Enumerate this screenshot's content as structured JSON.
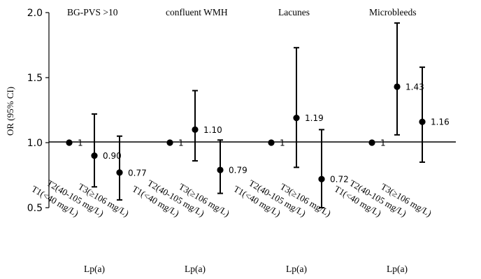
{
  "chart_data": {
    "type": "scatter",
    "ylabel": "OR (95% CI)",
    "ylim": [
      0.5,
      2.0
    ],
    "yticks": [
      "0.5",
      "1.0",
      "1.5",
      "2.0"
    ],
    "reference_line": 1.0,
    "panels": [
      {
        "title": "BG-PVS >10",
        "xlabel": "Lp(a)",
        "categories": [
          "T1(<40 mg/L)",
          "T2(40-105 mg/L)",
          "T3(≥106 mg/L)"
        ],
        "points": [
          {
            "or": 1.0,
            "lo": null,
            "hi": null,
            "label": "1"
          },
          {
            "or": 0.9,
            "lo": 0.66,
            "hi": 1.22,
            "label": "0.90"
          },
          {
            "or": 0.77,
            "lo": 0.56,
            "hi": 1.05,
            "label": "0.77"
          }
        ]
      },
      {
        "title": "confluent WMH",
        "xlabel": "Lp(a)",
        "categories": [
          "T1(<40 mg/L)",
          "T2(40-105 mg/L)",
          "T3(≥106 mg/L)"
        ],
        "points": [
          {
            "or": 1.0,
            "lo": null,
            "hi": null,
            "label": "1"
          },
          {
            "or": 1.1,
            "lo": 0.86,
            "hi": 1.4,
            "label": "1.10"
          },
          {
            "or": 0.79,
            "lo": 0.61,
            "hi": 1.02,
            "label": "0.79"
          }
        ]
      },
      {
        "title": "Lacunes",
        "xlabel": "Lp(a)",
        "categories": [
          "T1(<40 mg/L)",
          "T2(40-105 mg/L)",
          "T3(≥106 mg/L)"
        ],
        "points": [
          {
            "or": 1.0,
            "lo": null,
            "hi": null,
            "label": "1"
          },
          {
            "or": 1.19,
            "lo": 0.81,
            "hi": 1.73,
            "label": "1.19"
          },
          {
            "or": 0.72,
            "lo": 0.5,
            "hi": 1.1,
            "label": "0.72"
          }
        ]
      },
      {
        "title": "Microbleeds",
        "xlabel": "Lp(a)",
        "categories": [
          "T1(<40 mg/L)",
          "T2(40-105 mg/L)",
          "T3(≥106 mg/L)"
        ],
        "points": [
          {
            "or": 1.0,
            "lo": null,
            "hi": null,
            "label": "1"
          },
          {
            "or": 1.43,
            "lo": 1.06,
            "hi": 1.92,
            "label": "1.43"
          },
          {
            "or": 1.16,
            "lo": 0.85,
            "hi": 1.58,
            "label": "1.16"
          }
        ]
      }
    ]
  }
}
